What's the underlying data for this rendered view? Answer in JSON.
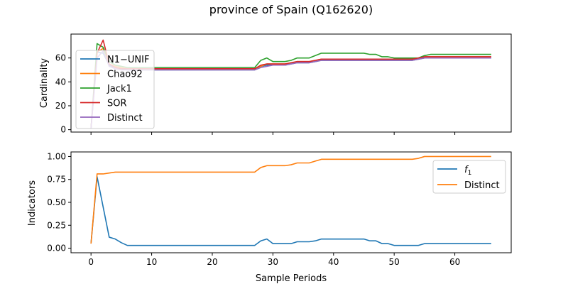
{
  "figure": {
    "title": "province of Spain (Q162620)"
  },
  "chart_data": [
    {
      "type": "line",
      "ylabel": "Cardinality",
      "xlabel": "",
      "xlim": [
        -3.3,
        69.3
      ],
      "ylim": [
        -2,
        80
      ],
      "x_ticks": [
        0,
        10,
        20,
        30,
        40,
        50,
        60
      ],
      "x_tick_labels_visible": false,
      "y_ticks": [
        0,
        20,
        40,
        60
      ],
      "y_tick_labels": [
        "0",
        "20",
        "40",
        "60"
      ],
      "legend_position": "center-left",
      "grid": false,
      "x": [
        0,
        1,
        2,
        3,
        4,
        5,
        6,
        7,
        8,
        9,
        10,
        11,
        12,
        13,
        14,
        15,
        16,
        17,
        18,
        19,
        20,
        21,
        22,
        23,
        24,
        25,
        26,
        27,
        28,
        29,
        30,
        31,
        32,
        33,
        34,
        35,
        36,
        37,
        38,
        39,
        40,
        41,
        42,
        43,
        44,
        45,
        46,
        47,
        48,
        49,
        50,
        51,
        52,
        53,
        54,
        55,
        56,
        57,
        58,
        59,
        60,
        61,
        62,
        63,
        64,
        65,
        66
      ],
      "series": [
        {
          "name": "N1−UNIF",
          "color": "#1f77b4",
          "values": [
            1,
            65,
            64,
            54,
            52,
            51,
            50,
            50,
            50,
            50,
            50,
            50,
            50,
            50,
            50,
            50,
            50,
            50,
            50,
            50,
            50,
            50,
            50,
            50,
            50,
            50,
            50,
            50,
            53,
            54,
            54,
            54,
            54,
            55,
            56,
            56,
            56,
            57,
            58,
            58,
            58,
            58,
            58,
            58,
            58,
            58,
            58,
            58,
            58,
            58,
            58,
            58,
            58,
            58,
            59,
            60,
            60,
            60,
            60,
            60,
            60,
            60,
            60,
            60,
            60,
            60,
            60
          ]
        },
        {
          "name": "Chao92",
          "color": "#ff7f0e",
          "values": [
            1,
            65,
            68,
            55,
            53,
            52,
            51,
            51,
            51,
            51,
            51,
            51,
            51,
            51,
            51,
            51,
            51,
            51,
            51,
            51,
            51,
            51,
            51,
            51,
            51,
            51,
            51,
            51,
            53,
            55,
            55,
            55,
            55,
            56,
            57,
            57,
            57,
            58,
            59,
            59,
            59,
            59,
            59,
            59,
            59,
            59,
            59,
            59,
            59,
            59,
            59,
            59,
            59,
            59,
            60,
            61,
            61,
            61,
            61,
            61,
            61,
            61,
            61,
            61,
            61,
            61,
            61
          ]
        },
        {
          "name": "Jack1",
          "color": "#2ca02c",
          "values": [
            1,
            72,
            69,
            57,
            54,
            53,
            52,
            52,
            52,
            52,
            52,
            52,
            52,
            52,
            52,
            52,
            52,
            52,
            52,
            52,
            52,
            52,
            52,
            52,
            52,
            52,
            52,
            52,
            58,
            60,
            57,
            57,
            57,
            58,
            60,
            60,
            60,
            62,
            64,
            64,
            64,
            64,
            64,
            64,
            64,
            64,
            63,
            63,
            61,
            61,
            60,
            60,
            60,
            60,
            60,
            62,
            63,
            63,
            63,
            63,
            63,
            63,
            63,
            63,
            63,
            63,
            63
          ]
        },
        {
          "name": "SOR",
          "color": "#d62728",
          "values": [
            1,
            64,
            75,
            55,
            52,
            51,
            51,
            51,
            51,
            51,
            51,
            51,
            51,
            51,
            51,
            51,
            51,
            51,
            51,
            51,
            51,
            51,
            51,
            51,
            51,
            51,
            51,
            51,
            54,
            55,
            55,
            55,
            55,
            56,
            57,
            57,
            57,
            58,
            59,
            59,
            59,
            59,
            59,
            59,
            59,
            59,
            59,
            59,
            59,
            59,
            59,
            59,
            59,
            59,
            60,
            61,
            61,
            61,
            61,
            61,
            61,
            61,
            61,
            61,
            61,
            61,
            61
          ]
        },
        {
          "name": "Distinct",
          "color": "#9467bd",
          "values": [
            1,
            60,
            66,
            53,
            51,
            50,
            50,
            50,
            50,
            50,
            50,
            50,
            50,
            50,
            50,
            50,
            50,
            50,
            50,
            50,
            50,
            50,
            50,
            50,
            50,
            50,
            50,
            50,
            52,
            53,
            54,
            54,
            54,
            55,
            56,
            56,
            56,
            57,
            58,
            58,
            58,
            58,
            58,
            58,
            58,
            58,
            58,
            58,
            58,
            58,
            58,
            58,
            58,
            58,
            59,
            60,
            60,
            60,
            60,
            60,
            60,
            60,
            60,
            60,
            60,
            60,
            60
          ]
        }
      ]
    },
    {
      "type": "line",
      "ylabel": "Indicators",
      "xlabel": "Sample Periods",
      "xlim": [
        -3.3,
        69.3
      ],
      "ylim": [
        -0.05,
        1.05
      ],
      "x_ticks": [
        0,
        10,
        20,
        30,
        40,
        50,
        60
      ],
      "x_tick_labels": [
        "0",
        "10",
        "20",
        "30",
        "40",
        "50",
        "60"
      ],
      "y_ticks": [
        0.0,
        0.25,
        0.5,
        0.75,
        1.0
      ],
      "y_tick_labels": [
        "0.00",
        "0.25",
        "0.50",
        "0.75",
        "1.00"
      ],
      "legend_position": "upper-right",
      "grid": false,
      "x": [
        0,
        1,
        2,
        3,
        4,
        5,
        6,
        7,
        8,
        9,
        10,
        11,
        12,
        13,
        14,
        15,
        16,
        17,
        18,
        19,
        20,
        21,
        22,
        23,
        24,
        25,
        26,
        27,
        28,
        29,
        30,
        31,
        32,
        33,
        34,
        35,
        36,
        37,
        38,
        39,
        40,
        41,
        42,
        43,
        44,
        45,
        46,
        47,
        48,
        49,
        50,
        51,
        52,
        53,
        54,
        55,
        56,
        57,
        58,
        59,
        60,
        61,
        62,
        63,
        64,
        65,
        66
      ],
      "series": [
        {
          "name": "f",
          "name_subscript": "1",
          "color": "#1f77b4",
          "values": [
            0.05,
            0.78,
            0.45,
            0.12,
            0.1,
            0.06,
            0.03,
            0.03,
            0.03,
            0.03,
            0.03,
            0.03,
            0.03,
            0.03,
            0.03,
            0.03,
            0.03,
            0.03,
            0.03,
            0.03,
            0.03,
            0.03,
            0.03,
            0.03,
            0.03,
            0.03,
            0.03,
            0.03,
            0.08,
            0.1,
            0.05,
            0.05,
            0.05,
            0.05,
            0.07,
            0.07,
            0.07,
            0.08,
            0.1,
            0.1,
            0.1,
            0.1,
            0.1,
            0.1,
            0.1,
            0.1,
            0.08,
            0.08,
            0.05,
            0.05,
            0.03,
            0.03,
            0.03,
            0.03,
            0.03,
            0.05,
            0.05,
            0.05,
            0.05,
            0.05,
            0.05,
            0.05,
            0.05,
            0.05,
            0.05,
            0.05,
            0.05
          ]
        },
        {
          "name": "Distinct",
          "color": "#ff7f0e",
          "values": [
            0.05,
            0.81,
            0.81,
            0.82,
            0.83,
            0.83,
            0.83,
            0.83,
            0.83,
            0.83,
            0.83,
            0.83,
            0.83,
            0.83,
            0.83,
            0.83,
            0.83,
            0.83,
            0.83,
            0.83,
            0.83,
            0.83,
            0.83,
            0.83,
            0.83,
            0.83,
            0.83,
            0.83,
            0.88,
            0.9,
            0.9,
            0.9,
            0.9,
            0.91,
            0.93,
            0.93,
            0.93,
            0.95,
            0.97,
            0.97,
            0.97,
            0.97,
            0.97,
            0.97,
            0.97,
            0.97,
            0.97,
            0.97,
            0.97,
            0.97,
            0.97,
            0.97,
            0.97,
            0.97,
            0.98,
            1.0,
            1.0,
            1.0,
            1.0,
            1.0,
            1.0,
            1.0,
            1.0,
            1.0,
            1.0,
            1.0,
            1.0
          ]
        }
      ]
    }
  ]
}
